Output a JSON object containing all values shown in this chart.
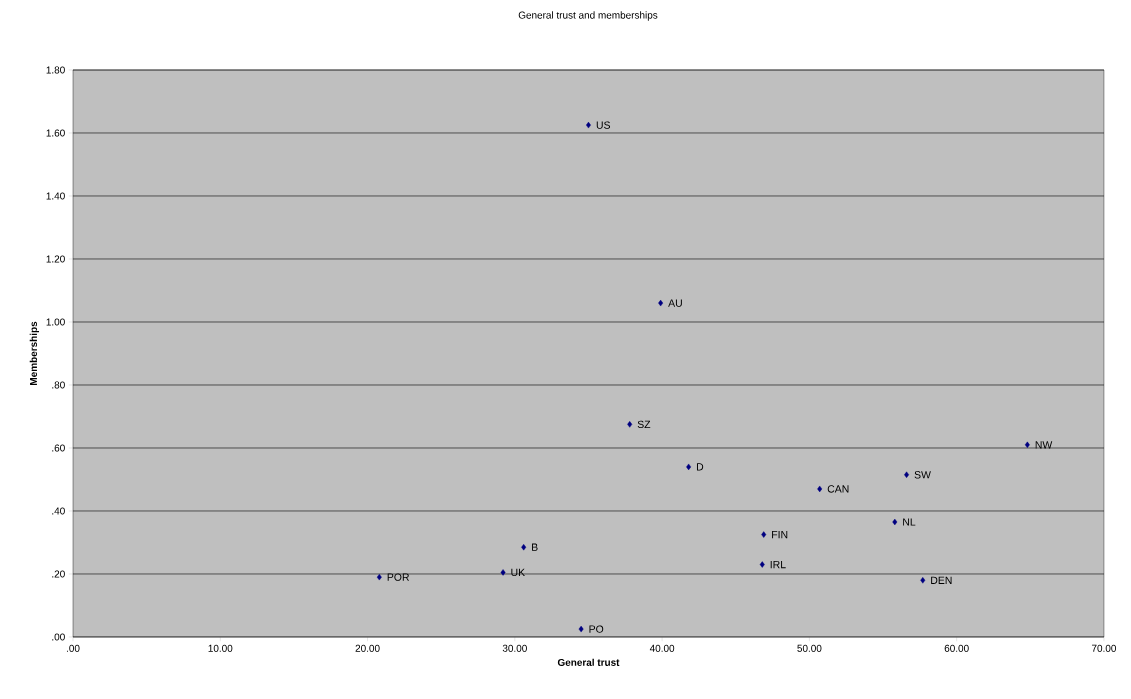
{
  "chart_data": {
    "type": "scatter",
    "title": "General trust and memberships",
    "xlabel": "General trust",
    "ylabel": "Memberships",
    "color": "#000080",
    "marker": "diamond",
    "grid": "y",
    "x": [
      35.0,
      39.9,
      37.8,
      41.8,
      64.8,
      56.6,
      50.7,
      55.8,
      46.9,
      46.8,
      57.7,
      30.6,
      29.2,
      20.8,
      34.5
    ],
    "values": [
      1.625,
      1.06,
      0.675,
      0.54,
      0.61,
      0.515,
      0.47,
      0.365,
      0.325,
      0.23,
      0.18,
      0.285,
      0.205,
      0.19,
      0.025
    ],
    "annotations": [
      {
        "text": "US",
        "x": 35.0,
        "y": 1.625
      },
      {
        "text": "AU",
        "x": 39.9,
        "y": 1.06
      },
      {
        "text": "SZ",
        "x": 37.8,
        "y": 0.675
      },
      {
        "text": "D",
        "x": 41.8,
        "y": 0.54
      },
      {
        "text": "NW",
        "x": 64.8,
        "y": 0.61
      },
      {
        "text": "SW",
        "x": 56.6,
        "y": 0.515
      },
      {
        "text": "CAN",
        "x": 50.7,
        "y": 0.47
      },
      {
        "text": "NL",
        "x": 55.8,
        "y": 0.365
      },
      {
        "text": "FIN",
        "x": 46.9,
        "y": 0.325
      },
      {
        "text": "IRL",
        "x": 46.8,
        "y": 0.23
      },
      {
        "text": "DEN",
        "x": 57.7,
        "y": 0.18
      },
      {
        "text": "B",
        "x": 30.6,
        "y": 0.285
      },
      {
        "text": "UK",
        "x": 29.2,
        "y": 0.205
      },
      {
        "text": "POR",
        "x": 20.8,
        "y": 0.19
      },
      {
        "text": "PO",
        "x": 34.5,
        "y": 0.025
      }
    ],
    "xlim": [
      0,
      70
    ],
    "xticks": [
      {
        "value": 0,
        "label": ".00"
      },
      {
        "value": 10,
        "label": "10.00"
      },
      {
        "value": 20,
        "label": "20.00"
      },
      {
        "value": 30,
        "label": "30.00"
      },
      {
        "value": 40,
        "label": "40.00"
      },
      {
        "value": 50,
        "label": "50.00"
      },
      {
        "value": 60,
        "label": "60.00"
      },
      {
        "value": 70,
        "label": "70.00"
      }
    ],
    "ylim": [
      0,
      1.8
    ],
    "yticks": [
      {
        "value": 0,
        "label": ".00"
      },
      {
        "value": 0.2,
        "label": ".20"
      },
      {
        "value": 0.4,
        "label": ".40"
      },
      {
        "value": 0.6,
        "label": ".60"
      },
      {
        "value": 0.8,
        "label": ".80"
      },
      {
        "value": 1.0,
        "label": "1.00"
      },
      {
        "value": 1.2,
        "label": "1.20"
      },
      {
        "value": 1.4,
        "label": "1.40"
      },
      {
        "value": 1.6,
        "label": "1.60"
      },
      {
        "value": 1.8,
        "label": "1.80"
      }
    ]
  }
}
